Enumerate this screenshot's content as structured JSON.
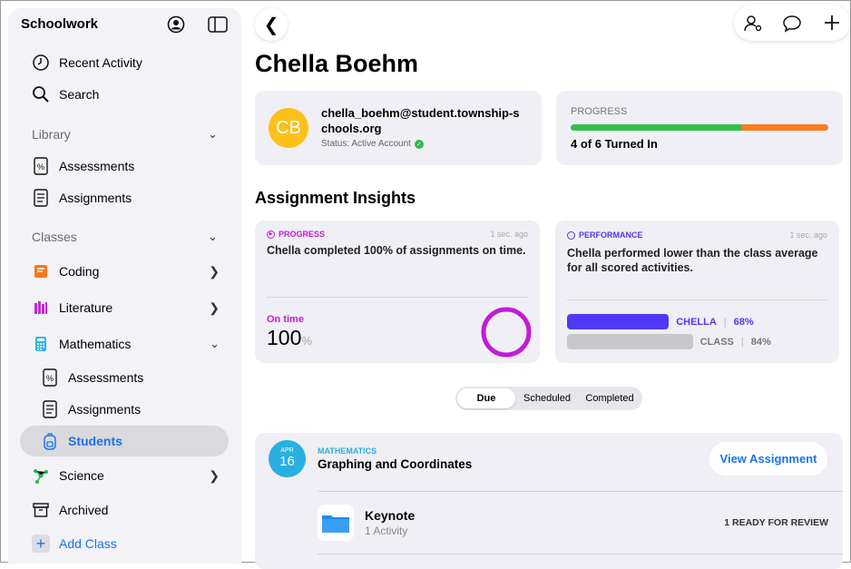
{
  "sidebar": {
    "title": "Schoolwork",
    "recent": "Recent Activity",
    "search": "Search",
    "library": "Library",
    "lib_items": [
      "Assessments",
      "Assignments"
    ],
    "classes": "Classes",
    "class_items": [
      "Coding",
      "Literature",
      "Mathematics",
      "Science"
    ],
    "math_sub": [
      "Assessments",
      "Assignments",
      "Students"
    ],
    "archived": "Archived",
    "add_class": "Add Class"
  },
  "header": {
    "student_name": "Chella Boehm"
  },
  "profile": {
    "initials": "CB",
    "email": "chella_boehm@student.township-schools.org",
    "status": "Status: Active Account"
  },
  "progress": {
    "label": "PROGRESS",
    "turned_in": "4 of 6 Turned In",
    "fraction": 0.667,
    "colors": {
      "done": "#34c04a",
      "remaining": "#fe7b22"
    }
  },
  "insights": {
    "title": "Assignment Insights",
    "progress_card": {
      "tag": "PROGRESS",
      "time": "1 sec. ago",
      "text": "Chella completed 100% of assignments on time.",
      "metric_label": "On time",
      "value": "100",
      "unit": "%",
      "color": "#c21bd6"
    },
    "performance_card": {
      "tag": "PERFORMANCE",
      "time": "1 sec. ago",
      "text": "Chella performed lower than the class average for all scored activities.",
      "student_label": "CHELLA",
      "student_value": "68%",
      "class_label": "CLASS",
      "class_value": "84%",
      "color": "#4f39f6"
    }
  },
  "segments": [
    "Due",
    "Scheduled",
    "Completed"
  ],
  "assignment": {
    "month": "APR",
    "day": "16",
    "subject": "MATHEMATICS",
    "title": "Graphing and Coordinates",
    "view_button": "View Assignment",
    "app": "Keynote",
    "activity": "1 Activity",
    "review": "1 READY FOR REVIEW"
  }
}
